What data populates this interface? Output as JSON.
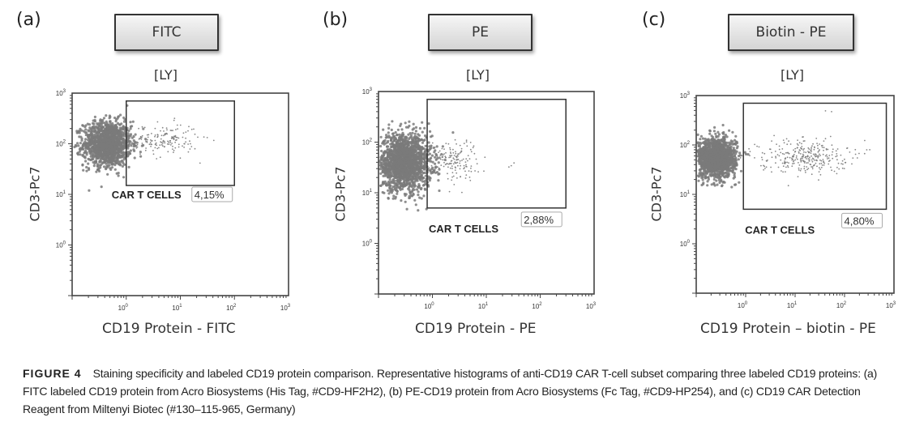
{
  "chart_data": [
    {
      "type": "scatter",
      "panel_letter": "(a)",
      "header_label": "FITC",
      "title": "[LY]",
      "xlabel": "CD19 Protein - FITC",
      "ylabel": "CD3-Pc7",
      "x_scale": "log",
      "y_scale": "log",
      "xlim": [
        0.1,
        1000
      ],
      "ylim": [
        0.1,
        1000
      ],
      "x_ticks": [
        {
          "base": "10",
          "exp": "0"
        },
        {
          "base": "10",
          "exp": "1"
        },
        {
          "base": "10",
          "exp": "2"
        },
        {
          "base": "10",
          "exp": "3"
        }
      ],
      "y_ticks": [
        {
          "base": "10",
          "exp": "0"
        },
        {
          "base": "10",
          "exp": "1"
        },
        {
          "base": "10",
          "exp": "2"
        },
        {
          "base": "10",
          "exp": "3"
        }
      ],
      "gate": {
        "name": "CAR T CELLS",
        "percent": "4,15%",
        "x_range": [
          1,
          100
        ],
        "y_range": [
          15,
          700
        ]
      },
      "populations": [
        {
          "name": "main",
          "center": [
            0.45,
            100
          ],
          "spread": [
            0.22,
            0.22
          ],
          "count": 1400,
          "dense": true
        },
        {
          "name": "positive",
          "center": [
            5,
            120
          ],
          "spread": [
            0.32,
            0.16
          ],
          "count": 160,
          "dense": false
        }
      ],
      "color": "#7a7a7a"
    },
    {
      "type": "scatter",
      "panel_letter": "(b)",
      "header_label": "PE",
      "title": "[LY]",
      "xlabel": "CD19 Protein - PE",
      "ylabel": "CD3-Pc7",
      "x_scale": "log",
      "y_scale": "log",
      "xlim": [
        0.1,
        1000
      ],
      "ylim": [
        0.1,
        1000
      ],
      "x_ticks": [
        {
          "base": "10",
          "exp": "0"
        },
        {
          "base": "10",
          "exp": "1"
        },
        {
          "base": "10",
          "exp": "2"
        },
        {
          "base": "10",
          "exp": "3"
        }
      ],
      "y_ticks": [
        {
          "base": "10",
          "exp": "0"
        },
        {
          "base": "10",
          "exp": "1"
        },
        {
          "base": "10",
          "exp": "2"
        },
        {
          "base": "10",
          "exp": "3"
        }
      ],
      "gate": {
        "name": "CAR T CELLS",
        "percent": "2,88%",
        "x_range": [
          0.8,
          300
        ],
        "y_range": [
          5,
          700
        ]
      },
      "populations": [
        {
          "name": "main",
          "center": [
            0.3,
            40
          ],
          "spread": [
            0.25,
            0.27
          ],
          "count": 1800,
          "dense": true
        },
        {
          "name": "positive",
          "center": [
            2.5,
            45
          ],
          "spread": [
            0.22,
            0.2
          ],
          "count": 150,
          "dense": false
        },
        {
          "name": "outliers",
          "center": [
            35,
            35
          ],
          "spread": [
            0.06,
            0.05
          ],
          "count": 3,
          "dense": false
        }
      ],
      "color": "#7a7a7a"
    },
    {
      "type": "scatter",
      "panel_letter": "(c)",
      "header_label": "Biotin - PE",
      "title": "[LY]",
      "xlabel": "CD19 Protein – biotin - PE",
      "ylabel": "CD3-Pc7",
      "x_scale": "log",
      "y_scale": "log",
      "xlim": [
        0.1,
        1000
      ],
      "ylim": [
        0.1,
        1000
      ],
      "x_ticks": [
        {
          "base": "10",
          "exp": "0"
        },
        {
          "base": "10",
          "exp": "1"
        },
        {
          "base": "10",
          "exp": "2"
        },
        {
          "base": "10",
          "exp": "3"
        }
      ],
      "y_ticks": [
        {
          "base": "10",
          "exp": "0"
        },
        {
          "base": "10",
          "exp": "1"
        },
        {
          "base": "10",
          "exp": "2"
        },
        {
          "base": "10",
          "exp": "3"
        }
      ],
      "gate": {
        "name": "CAR T CELLS",
        "percent": "4,80%",
        "x_range": [
          0.9,
          700
        ],
        "y_range": [
          5,
          700
        ]
      },
      "populations": [
        {
          "name": "main",
          "center": [
            0.25,
            55
          ],
          "spread": [
            0.2,
            0.2
          ],
          "count": 1500,
          "dense": true
        },
        {
          "name": "positive",
          "center": [
            15,
            60
          ],
          "spread": [
            0.45,
            0.17
          ],
          "count": 300,
          "dense": false
        },
        {
          "name": "outliers",
          "center": [
            45,
            480
          ],
          "spread": [
            0.05,
            0.02
          ],
          "count": 2,
          "dense": false
        }
      ],
      "color": "#7a7a7a"
    }
  ],
  "caption": {
    "figure_label": "FIGURE 4",
    "text": "Staining specificity and labeled CD19 protein comparison. Representative histograms of anti-CD19 CAR T-cell subset comparing three labeled CD19 proteins: (a) FITC labeled CD19 protein from Acro Biosystems (His Tag, #CD9-HF2H2), (b) PE-CD19 protein from Acro Biosystems (Fc Tag, #CD9-HP254), and (c) CD19 CAR Detection Reagent from Miltenyi Biotec (#130–115-965, Germany)"
  }
}
